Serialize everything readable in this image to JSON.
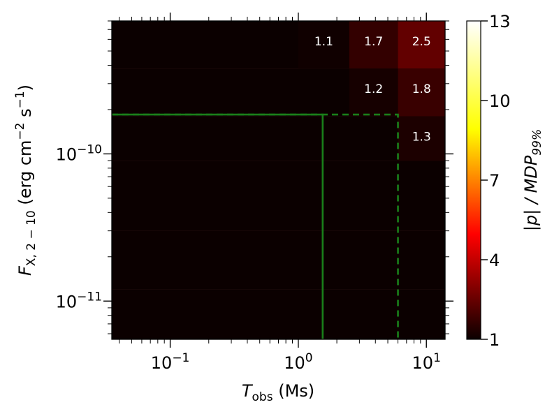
{
  "chart_data": {
    "type": "heatmap",
    "xlabel": {
      "main": "T",
      "sub": "obs",
      "rest": " (Ms)"
    },
    "ylabel": {
      "main": "F",
      "sub": "X, 2 − 10",
      "rest": " (erg cm",
      "sup1": "−2",
      "mid": " s",
      "sup2": "−1",
      "end": ")"
    },
    "colorbar_label": "|p| / MDP",
    "colorbar_label_sub": "99%",
    "x_scale": "log",
    "y_scale": "log",
    "xlim": [
      0.035,
      14
    ],
    "ylim": [
      5.5e-12,
      8e-10
    ],
    "x_ticks": [
      {
        "value": 0.1,
        "base": "10",
        "exp": "−1"
      },
      {
        "value": 1,
        "base": "10",
        "exp": "0"
      },
      {
        "value": 10,
        "base": "10",
        "exp": "1"
      }
    ],
    "y_ticks": [
      {
        "value": 1e-11,
        "base": "10",
        "exp": "−11"
      },
      {
        "value": 1e-10,
        "base": "10",
        "exp": "−10"
      }
    ],
    "colorbar": {
      "min": 1,
      "max": 13,
      "ticks": [
        "1",
        "4",
        "7",
        "10",
        "13"
      ],
      "colormap": "hot"
    },
    "x_edges": [
      0.035,
      0.08,
      0.18,
      0.4,
      1.0,
      2.5,
      6.0,
      14
    ],
    "y_edges": [
      5.5e-12,
      1.2e-11,
      3e-11,
      9e-11,
      1.8e-10,
      3.8e-10,
      8e-10
    ],
    "cells": [
      {
        "xi": 4,
        "yi": 5,
        "value": 1.1,
        "label": "1.1"
      },
      {
        "xi": 5,
        "yi": 5,
        "value": 1.7,
        "label": "1.7"
      },
      {
        "xi": 6,
        "yi": 5,
        "value": 2.5,
        "label": "2.5"
      },
      {
        "xi": 5,
        "yi": 4,
        "value": 1.2,
        "label": "1.2"
      },
      {
        "xi": 6,
        "yi": 4,
        "value": 1.8,
        "label": "1.8"
      },
      {
        "xi": 6,
        "yi": 3,
        "value": 1.3,
        "label": "1.3"
      }
    ],
    "threshold_lines": [
      {
        "style": "solid",
        "color": "#1a7f1a",
        "x": 1.55,
        "y": 1.85e-10
      },
      {
        "style": "dashed",
        "color": "#1a7f1a",
        "x": 6.0,
        "y": 1.85e-10
      }
    ]
  }
}
